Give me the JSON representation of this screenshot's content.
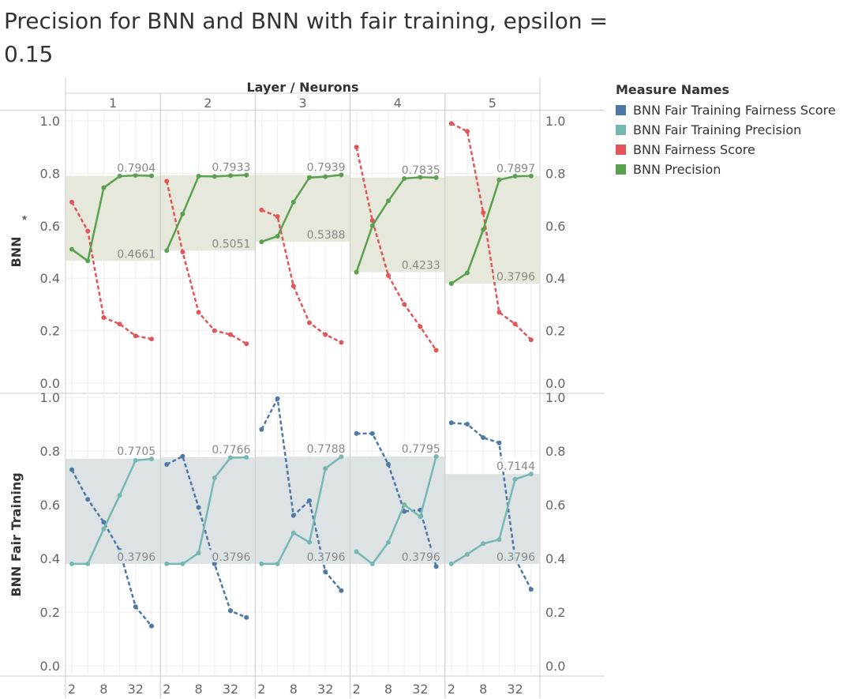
{
  "title": "Precision for BNN and BNN with fair training, epsilon = 0.15",
  "legend": {
    "title": "Measure Names",
    "items": [
      {
        "label": "BNN Fair Training Fairness Score",
        "color": "#4e79a7"
      },
      {
        "label": "BNN Fair Training Precision",
        "color": "#76b7b2"
      },
      {
        "label": "BNN Fairness Score",
        "color": "#e15759"
      },
      {
        "label": "BNN Precision",
        "color": "#59a14f"
      }
    ]
  },
  "chart_data": {
    "type": "line",
    "column_header": "Layer / Neurons",
    "layers": [
      "1",
      "2",
      "3",
      "4",
      "5"
    ],
    "x": [
      2,
      4,
      8,
      16,
      32,
      64
    ],
    "x_tick_labels": [
      "2",
      "8",
      "32"
    ],
    "ylim": [
      0,
      1
    ],
    "y_ticks": [
      "0.0",
      "0.2",
      "0.4",
      "0.6",
      "0.8",
      "1.0"
    ],
    "grid": true,
    "legend_position": "right",
    "rows": [
      {
        "label": "BNN",
        "pinned": true,
        "band_color": "#e6e8dc",
        "series": [
          {
            "name": "BNN Fairness Score",
            "color": "#e15759",
            "dashed": true,
            "panels": [
              [
                0.69,
                0.58,
                0.25,
                0.225,
                0.18,
                0.168
              ],
              [
                0.77,
                0.5,
                0.27,
                0.2,
                0.185,
                0.15
              ],
              [
                0.66,
                0.635,
                0.37,
                0.23,
                0.185,
                0.155
              ],
              [
                0.9,
                0.62,
                0.41,
                0.3,
                0.215,
                0.125
              ],
              [
                0.99,
                0.96,
                0.65,
                0.27,
                0.225,
                0.165
              ]
            ]
          },
          {
            "name": "BNN Precision",
            "color": "#59a14f",
            "dashed": false,
            "panels": [
              [
                0.51,
                0.4661,
                0.745,
                0.789,
                0.792,
                0.7904
              ],
              [
                0.5051,
                0.645,
                0.789,
                0.788,
                0.791,
                0.7933
              ],
              [
                0.5388,
                0.56,
                0.69,
                0.784,
                0.787,
                0.7939
              ],
              [
                0.4233,
                0.6,
                0.695,
                0.78,
                0.785,
                0.7835
              ],
              [
                0.3796,
                0.42,
                0.585,
                0.775,
                0.789,
                0.7897
              ]
            ]
          }
        ],
        "band": [
          {
            "min": 0.4661,
            "max": 0.7904,
            "min_label": "0.4661",
            "max_label": "0.7904"
          },
          {
            "min": 0.5051,
            "max": 0.7933,
            "min_label": "0.5051",
            "max_label": "0.7933"
          },
          {
            "min": 0.5388,
            "max": 0.7939,
            "min_label": "0.5388",
            "max_label": "0.7939"
          },
          {
            "min": 0.4233,
            "max": 0.7835,
            "min_label": "0.4233",
            "max_label": "0.7835"
          },
          {
            "min": 0.3796,
            "max": 0.7897,
            "min_label": "0.3796",
            "max_label": "0.7897"
          }
        ]
      },
      {
        "label": "BNN Fair Training",
        "pinned": false,
        "band_color": "#dde3e5",
        "series": [
          {
            "name": "BNN Fair Training Fairness Score",
            "color": "#4e79a7",
            "dashed": true,
            "panels": [
              [
                0.73,
                0.62,
                0.535,
                0.43,
                0.22,
                0.148
              ],
              [
                0.75,
                0.78,
                0.59,
                0.38,
                0.205,
                0.18
              ],
              [
                0.88,
                0.995,
                0.56,
                0.615,
                0.35,
                0.28
              ],
              [
                0.865,
                0.865,
                0.75,
                0.575,
                0.58,
                0.37
              ],
              [
                0.905,
                0.9,
                0.85,
                0.83,
                0.4,
                0.285
              ]
            ]
          },
          {
            "name": "BNN Fair Training Precision",
            "color": "#76b7b2",
            "dashed": false,
            "panels": [
              [
                0.3796,
                0.3796,
                0.51,
                0.635,
                0.765,
                0.7705
              ],
              [
                0.3796,
                0.3796,
                0.42,
                0.7,
                0.775,
                0.7766
              ],
              [
                0.3796,
                0.3796,
                0.495,
                0.46,
                0.735,
                0.7788
              ],
              [
                0.425,
                0.3796,
                0.46,
                0.6,
                0.555,
                0.7795
              ],
              [
                0.3796,
                0.415,
                0.455,
                0.47,
                0.695,
                0.7144
              ]
            ]
          }
        ],
        "band": [
          {
            "min": 0.3796,
            "max": 0.7705,
            "min_label": "0.3796",
            "max_label": "0.7705"
          },
          {
            "min": 0.3796,
            "max": 0.7766,
            "min_label": "0.3796",
            "max_label": "0.7766"
          },
          {
            "min": 0.3796,
            "max": 0.7788,
            "min_label": "0.3796",
            "max_label": "0.7788"
          },
          {
            "min": 0.3796,
            "max": 0.7795,
            "min_label": "0.3796",
            "max_label": "0.7795"
          },
          {
            "min": 0.3796,
            "max": 0.7144,
            "min_label": "0.3796",
            "max_label": "0.7144"
          }
        ]
      }
    ]
  }
}
